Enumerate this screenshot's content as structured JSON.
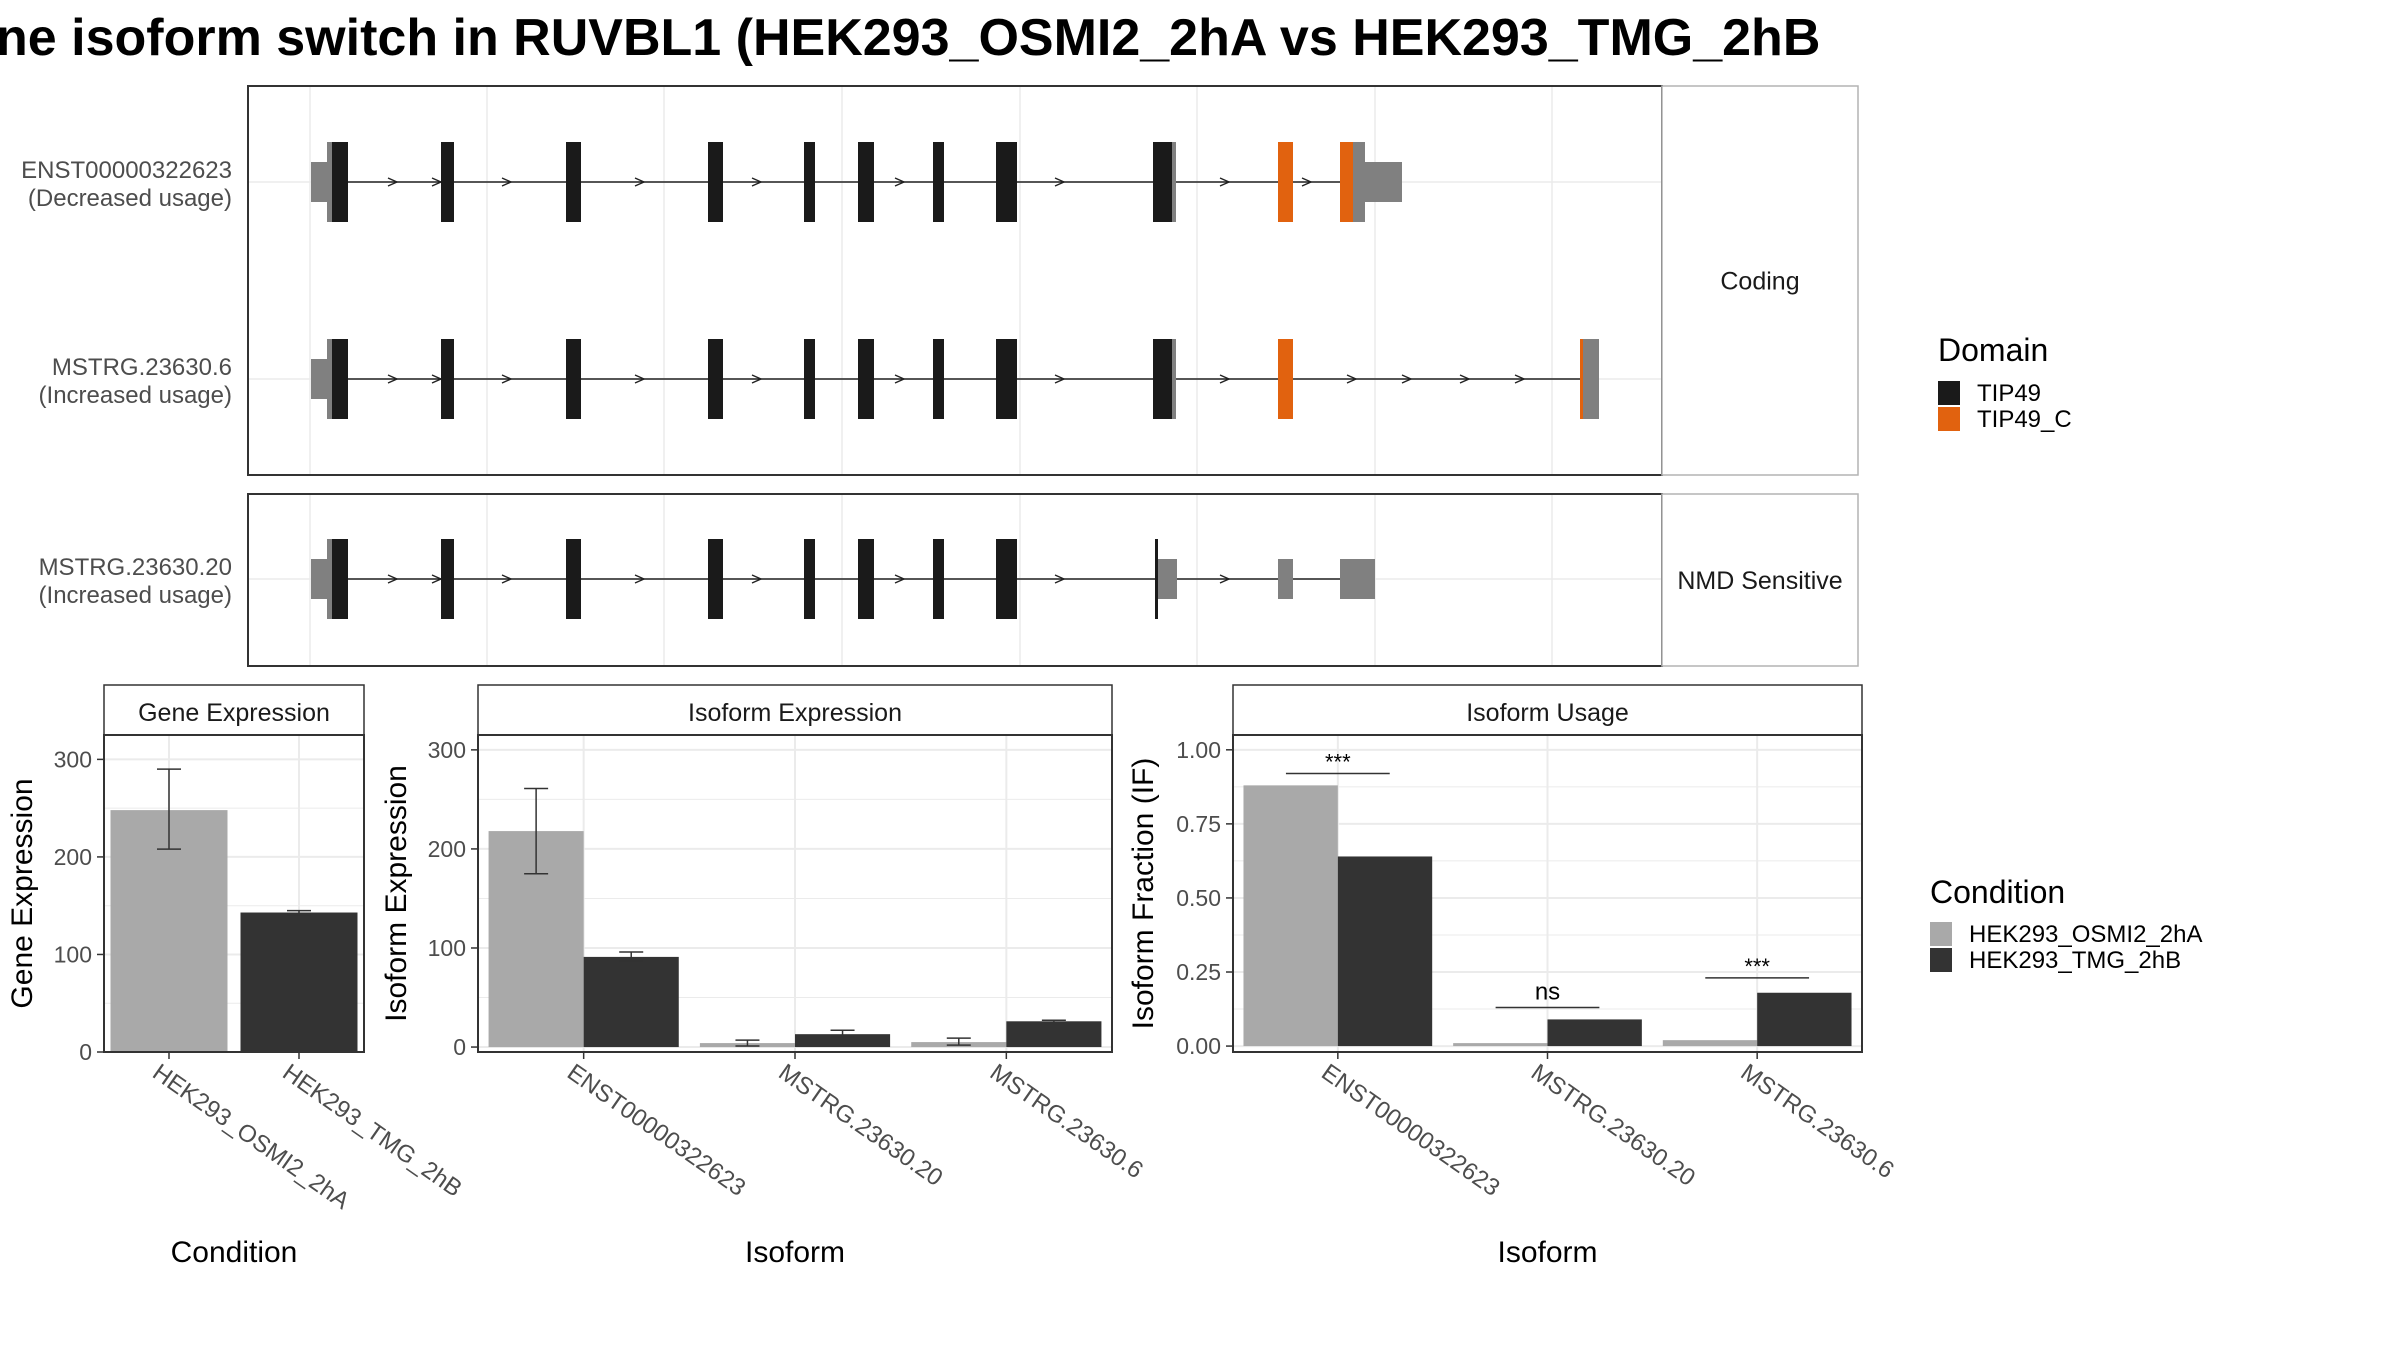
{
  "title": "ne isoform switch in RUVBL1 (HEK293_OSMI2_2hA vs HEK293_TMG_2hB",
  "colors": {
    "tip49": "#1a1a1a",
    "tip49_c": "#e1620f",
    "noncoding": "#808080",
    "cond_a": "#a9a9a9",
    "cond_b": "#333333",
    "strip_border": "#b3b3b3",
    "grid": "#ebebeb"
  },
  "structure": {
    "panels": [
      {
        "strip_label": "Coding",
        "transcripts": [
          {
            "name": "ENST00000322623",
            "usage": "(Decreased usage)"
          },
          {
            "name": "MSTRG.23630.6",
            "usage": "(Increased usage)"
          }
        ]
      },
      {
        "strip_label": "NMD Sensitive",
        "transcripts": [
          {
            "name": "MSTRG.23630.20",
            "usage": "(Increased usage)"
          }
        ]
      }
    ],
    "legend": {
      "title": "Domain",
      "items": [
        {
          "label": "TIP49",
          "color": "#1a1a1a"
        },
        {
          "label": "TIP49_C",
          "color": "#e1620f"
        }
      ]
    }
  },
  "condition_legend": {
    "title": "Condition",
    "items": [
      {
        "label": "HEK293_OSMI2_2hA",
        "color": "#a9a9a9"
      },
      {
        "label": "HEK293_TMG_2hB",
        "color": "#333333"
      }
    ]
  },
  "chart_data": [
    {
      "type": "bar",
      "title": "Gene Expression",
      "xlabel": "Condition",
      "ylabel": "Gene Expression",
      "ylim": [
        0,
        325
      ],
      "yticks": [
        0,
        100,
        200,
        300
      ],
      "categories": [
        "HEK293_OSMI2_2hA",
        "HEK293_TMG_2hB"
      ],
      "values": [
        248,
        143
      ],
      "errors": [
        [
          208,
          290
        ],
        [
          141,
          145
        ]
      ],
      "colors": [
        "#a9a9a9",
        "#333333"
      ]
    },
    {
      "type": "bar",
      "title": "Isoform Expression",
      "xlabel": "Isoform",
      "ylabel": "Isoform Expression",
      "ylim": [
        -5,
        315
      ],
      "yticks": [
        0,
        100,
        200,
        300
      ],
      "categories": [
        "ENST00000322623",
        "MSTRG.23630.20",
        "MSTRG.23630.6"
      ],
      "series": [
        {
          "name": "HEK293_OSMI2_2hA",
          "values": [
            218,
            4,
            5
          ],
          "errors": [
            [
              175,
              261
            ],
            [
              1,
              7
            ],
            [
              2,
              9
            ]
          ]
        },
        {
          "name": "HEK293_TMG_2hB",
          "values": [
            91,
            13,
            26
          ],
          "errors": [
            [
              87,
              96
            ],
            [
              10,
              17
            ],
            [
              25,
              27
            ]
          ]
        }
      ]
    },
    {
      "type": "bar",
      "title": "Isoform Usage",
      "xlabel": "Isoform",
      "ylabel": "Isoform Fraction (IF)",
      "ylim": [
        -0.02,
        1.05
      ],
      "yticks": [
        0,
        0.25,
        0.5,
        0.75,
        1
      ],
      "ytick_labels": [
        "0.00",
        "0.25",
        "0.50",
        "0.75",
        "1.00"
      ],
      "categories": [
        "ENST00000322623",
        "MSTRG.23630.20",
        "MSTRG.23630.6"
      ],
      "series": [
        {
          "name": "HEK293_OSMI2_2hA",
          "values": [
            0.88,
            0.01,
            0.02
          ]
        },
        {
          "name": "HEK293_TMG_2hB",
          "values": [
            0.64,
            0.09,
            0.18
          ]
        }
      ],
      "significance": [
        "***",
        "ns",
        "***"
      ],
      "significance_y": [
        0.92,
        0.13,
        0.23
      ]
    }
  ]
}
